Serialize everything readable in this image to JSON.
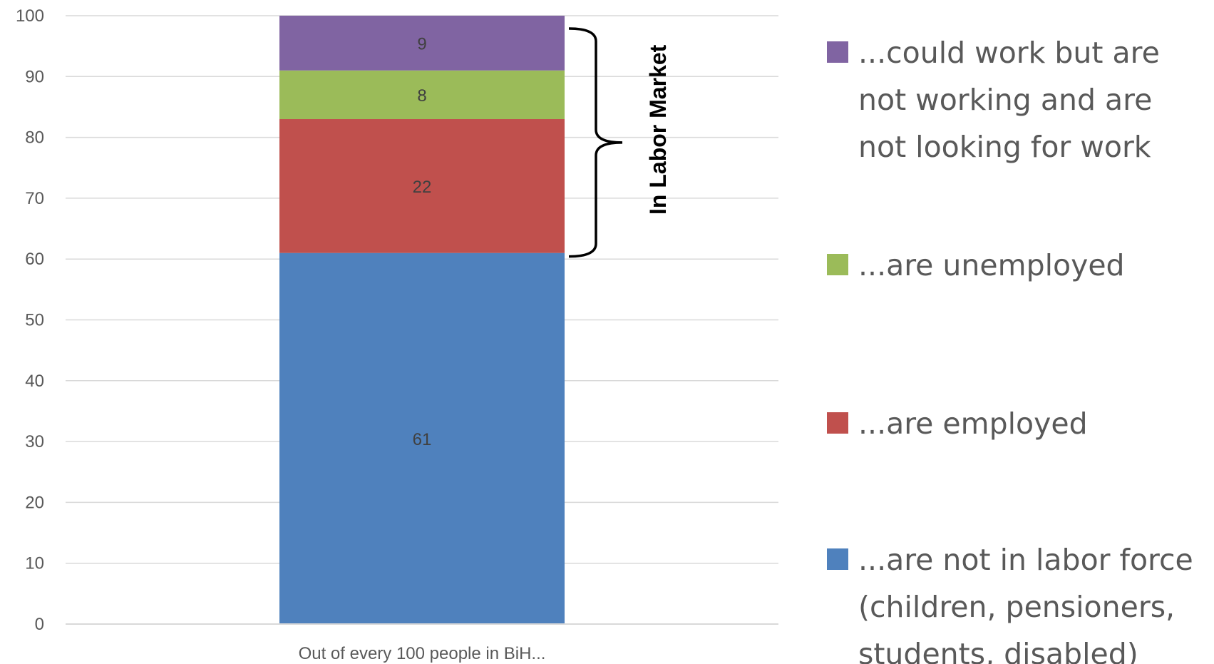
{
  "chart_data": {
    "type": "bar",
    "stacked": true,
    "categories": [
      "Out of every 100 people in BiH..."
    ],
    "series": [
      {
        "name": "...are not in labor force (children, pensioners, students, disabled)",
        "values": [
          61
        ],
        "color": "#4F81BD",
        "legend_lines": [
          "...are not in labor force",
          "(children, pensioners,",
          "students, disabled)"
        ]
      },
      {
        "name": "...are employed",
        "values": [
          22
        ],
        "color": "#C0504D",
        "legend_lines": [
          "...are employed"
        ]
      },
      {
        "name": "...are unemployed",
        "values": [
          8
        ],
        "color": "#9BBB59",
        "legend_lines": [
          "...are unemployed"
        ]
      },
      {
        "name": "...could work but are not working and are not looking for work",
        "values": [
          9
        ],
        "color": "#8064A2",
        "legend_lines": [
          "...could work but are",
          "not working and are",
          "not looking for work"
        ]
      }
    ],
    "ylim": [
      0,
      100
    ],
    "yticks": [
      0,
      10,
      20,
      30,
      40,
      50,
      60,
      70,
      80,
      90,
      100
    ],
    "grid": true,
    "legend_position": "right",
    "annotation": {
      "text": "In Labor Market",
      "span_series": [
        1,
        2,
        3
      ]
    },
    "title": "",
    "xlabel": "",
    "ylabel": ""
  }
}
